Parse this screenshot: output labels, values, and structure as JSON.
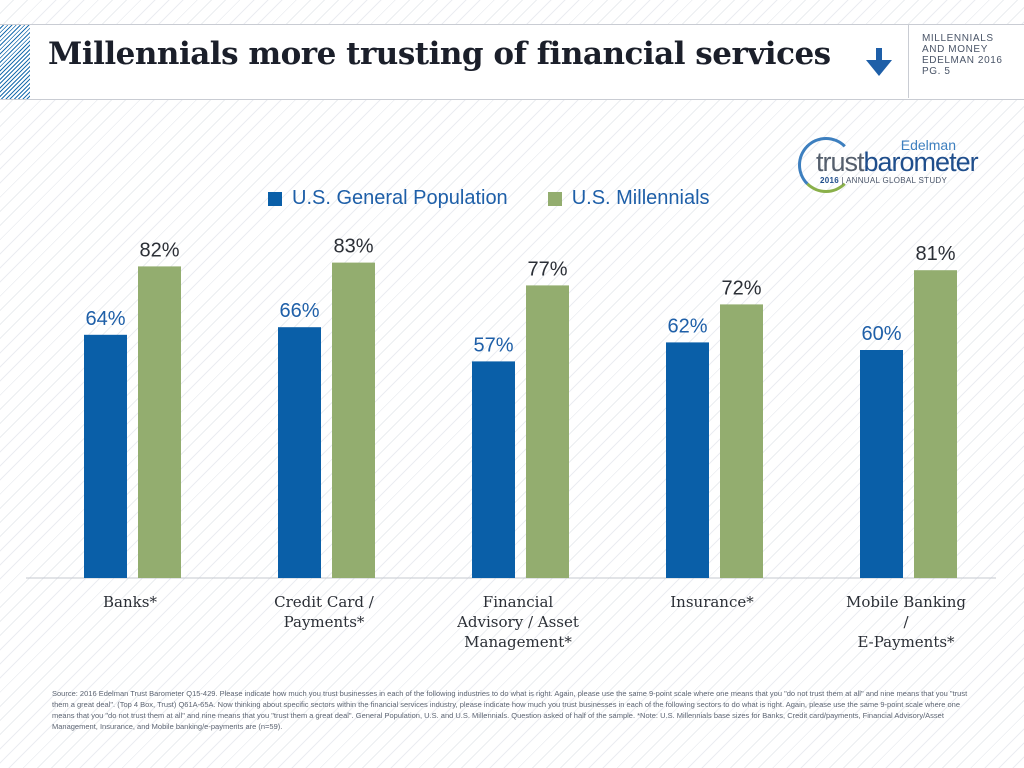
{
  "header": {
    "title": "Millennials more trusting of financial services",
    "meta_lines": [
      "MILLENNIALS",
      "AND MONEY",
      "EDELMAN 2016",
      "PG. 5"
    ]
  },
  "logo": {
    "brand": "Edelman",
    "word_light": "trust",
    "word_bold": "barometer",
    "year": "2016",
    "subtitle": "ANNUAL GLOBAL STUDY"
  },
  "colors": {
    "general_population": "#0a5fa8",
    "millennials": "#93ad6f",
    "accent": "#1e5fa8"
  },
  "chart_data": {
    "type": "bar",
    "categories": [
      "Banks*",
      "Credit Card / Payments*",
      "Financial Advisory / Asset Management*",
      "Insurance*",
      "Mobile Banking / E-Payments*"
    ],
    "category_lines": [
      [
        "Banks*"
      ],
      [
        "Credit Card /",
        "Payments*"
      ],
      [
        "Financial",
        "Advisory / Asset",
        "Management*"
      ],
      [
        "Insurance*"
      ],
      [
        "Mobile Banking",
        "/",
        "E-Payments*"
      ]
    ],
    "series": [
      {
        "name": "U.S. General Population",
        "values": [
          64,
          66,
          57,
          62,
          60
        ],
        "labels": [
          "64%",
          "66%",
          "57%",
          "62%",
          "60%"
        ]
      },
      {
        "name": "U.S. Millennials",
        "values": [
          82,
          83,
          77,
          72,
          81
        ],
        "labels": [
          "82%",
          "83%",
          "77%",
          "72%",
          "81%"
        ]
      }
    ],
    "ylim": [
      0,
      100
    ],
    "legend": "top"
  },
  "footer": {
    "source": "Source: 2016 Edelman Trust Barometer Q15-429. Please indicate how much you trust businesses in each of the following industries to do what is right. Again, please use the same 9-point scale where one means that you \"do not trust them at all\" and nine means that you \"trust them a great deal\". (Top 4 Box, Trust) Q61A-65A. Now thinking about specific sectors within the financial services industry, please indicate how much you trust businesses in each of the following sectors to do what is right. Again, please use the same 9-point scale where one means that you \"do not trust them at all\" and nine means that you \"trust them a great deal\". General Population, U.S. and U.S. Millennials. Question asked of half of the sample. *Note: U.S. Millennials base sizes for Banks, Credit card/payments, Financial Advisory/Asset Management, Insurance, and Mobile banking/e-payments are (n=59)."
  }
}
